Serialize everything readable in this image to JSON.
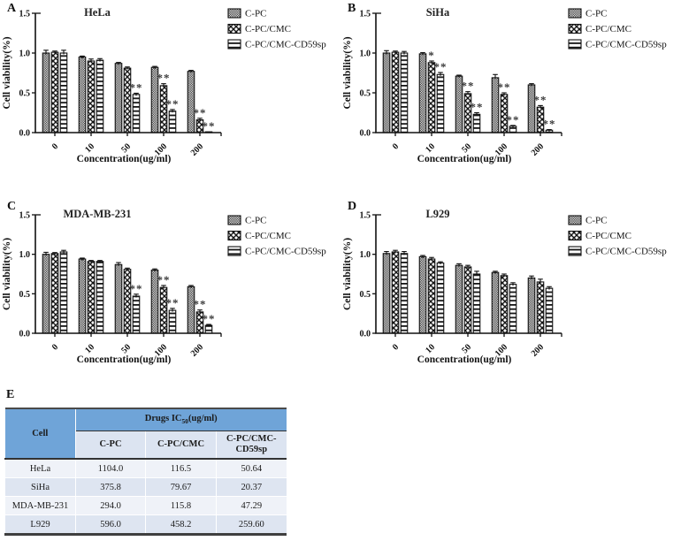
{
  "colors": {
    "ink": "#111111",
    "star": "#3a3a3a",
    "table_header_bg": "#6FA4D8",
    "table_subheader_bg": "#DCE4F1",
    "table_row_light": "#EFF2F8",
    "table_row_dark": "#DEE5F1",
    "table_border_dark": "#3f3f3f"
  },
  "legend": {
    "position": "right",
    "items": [
      {
        "label": "C-PC",
        "pattern": "checker"
      },
      {
        "label": "C-PC/CMC",
        "pattern": "diamond"
      },
      {
        "label": "C-PC/CMC-CD59sp",
        "pattern": "hlines"
      }
    ]
  },
  "chart_data": [
    {
      "type": "bar",
      "panel_letter": "A",
      "title": "HeLa",
      "xlabel": "Concentration(ug/ml)",
      "ylabel": "Cell viability(%)",
      "categories": [
        "0",
        "10",
        "50",
        "100",
        "200"
      ],
      "ylim": [
        0,
        1.5
      ],
      "yticks": [
        0.0,
        0.5,
        1.0,
        1.5
      ],
      "grid": false,
      "legend_position": "right",
      "series": [
        {
          "name": "C-PC",
          "values": [
            1.0,
            0.95,
            0.87,
            0.82,
            0.77
          ],
          "errors": [
            0.035,
            0.012,
            0.012,
            0.012,
            0.012
          ],
          "sig": [
            "",
            "",
            "",
            "",
            ""
          ]
        },
        {
          "name": "C-PC/CMC",
          "values": [
            1.01,
            0.9,
            0.81,
            0.59,
            0.16
          ],
          "errors": [
            0.015,
            0.025,
            0.015,
            0.025,
            0.02
          ],
          "sig": [
            "",
            "",
            "",
            "**",
            "**"
          ]
        },
        {
          "name": "C-PC/CMC-CD59sp",
          "values": [
            1.0,
            0.91,
            0.48,
            0.27,
            0.01
          ],
          "errors": [
            0.035,
            0.02,
            0.015,
            0.02,
            0.004
          ],
          "sig": [
            "",
            "",
            "**",
            "**",
            "**"
          ]
        }
      ]
    },
    {
      "type": "bar",
      "panel_letter": "B",
      "title": "SiHa",
      "xlabel": "Concentration(ug/ml)",
      "ylabel": "Cell viability(%)",
      "categories": [
        "0",
        "10",
        "50",
        "100",
        "200"
      ],
      "ylim": [
        0,
        1.5
      ],
      "yticks": [
        0.0,
        0.5,
        1.0,
        1.5
      ],
      "grid": false,
      "legend_position": "right",
      "series": [
        {
          "name": "C-PC",
          "values": [
            1.0,
            0.99,
            0.71,
            0.69,
            0.6
          ],
          "errors": [
            0.03,
            0.015,
            0.012,
            0.04,
            0.015
          ],
          "sig": [
            "",
            "",
            "",
            "",
            ""
          ]
        },
        {
          "name": "C-PC/CMC",
          "values": [
            1.01,
            0.88,
            0.49,
            0.48,
            0.32
          ],
          "errors": [
            0.015,
            0.02,
            0.025,
            0.02,
            0.02
          ],
          "sig": [
            "",
            "*",
            "**",
            "**",
            "**"
          ]
        },
        {
          "name": "C-PC/CMC-CD59sp",
          "values": [
            1.0,
            0.73,
            0.23,
            0.08,
            0.03
          ],
          "errors": [
            0.02,
            0.025,
            0.02,
            0.01,
            0.008
          ],
          "sig": [
            "",
            "**",
            "**",
            "**",
            "**"
          ]
        }
      ]
    },
    {
      "type": "bar",
      "panel_letter": "C",
      "title": "MDA-MB-231",
      "xlabel": "Concentration(ug/ml)",
      "ylabel": "Cell viability(%)",
      "categories": [
        "0",
        "10",
        "50",
        "100",
        "200"
      ],
      "ylim": [
        0,
        1.5
      ],
      "yticks": [
        0.0,
        0.5,
        1.0,
        1.5
      ],
      "grid": false,
      "legend_position": "right",
      "series": [
        {
          "name": "C-PC",
          "values": [
            1.0,
            0.94,
            0.87,
            0.8,
            0.59
          ],
          "errors": [
            0.025,
            0.012,
            0.025,
            0.015,
            0.015
          ],
          "sig": [
            "",
            "",
            "",
            "",
            ""
          ]
        },
        {
          "name": "C-PC/CMC",
          "values": [
            1.01,
            0.91,
            0.81,
            0.58,
            0.27
          ],
          "errors": [
            0.012,
            0.012,
            0.015,
            0.025,
            0.025
          ],
          "sig": [
            "",
            "",
            "",
            "**",
            "**"
          ]
        },
        {
          "name": "C-PC/CMC-CD59sp",
          "values": [
            1.03,
            0.91,
            0.47,
            0.29,
            0.1
          ],
          "errors": [
            0.02,
            0.012,
            0.025,
            0.025,
            0.012
          ],
          "sig": [
            "",
            "",
            "**",
            "**",
            "**"
          ]
        }
      ]
    },
    {
      "type": "bar",
      "panel_letter": "D",
      "title": "L929",
      "xlabel": "Concentration(ug/ml)",
      "ylabel": "Cell viability(%)",
      "categories": [
        "0",
        "10",
        "50",
        "100",
        "200"
      ],
      "ylim": [
        0,
        1.5
      ],
      "yticks": [
        0.0,
        0.5,
        1.0,
        1.5
      ],
      "grid": false,
      "legend_position": "right",
      "series": [
        {
          "name": "C-PC",
          "values": [
            1.01,
            0.97,
            0.86,
            0.77,
            0.7
          ],
          "errors": [
            0.025,
            0.015,
            0.02,
            0.015,
            0.025
          ],
          "sig": [
            "",
            "",
            "",
            "",
            ""
          ]
        },
        {
          "name": "C-PC/CMC",
          "values": [
            1.03,
            0.94,
            0.84,
            0.73,
            0.65
          ],
          "errors": [
            0.02,
            0.02,
            0.02,
            0.02,
            0.035
          ],
          "sig": [
            "",
            "",
            "",
            "",
            ""
          ]
        },
        {
          "name": "C-PC/CMC-CD59sp",
          "values": [
            1.01,
            0.89,
            0.75,
            0.62,
            0.57
          ],
          "errors": [
            0.025,
            0.015,
            0.035,
            0.02,
            0.02
          ],
          "sig": [
            "",
            "",
            "",
            "",
            ""
          ]
        }
      ]
    }
  ],
  "table": {
    "panel_letter": "E",
    "header": {
      "cell": "Cell",
      "drugs_pre": "Drugs  IC",
      "drugs_sub": "50",
      "drugs_post": "(ug/ml)",
      "columns": [
        "C-PC",
        "C-PC/CMC",
        "C-PC/CMC-CD59sp"
      ]
    },
    "rows": [
      {
        "cell": "HeLa",
        "values": [
          "1104.0",
          "116.5",
          "50.64"
        ]
      },
      {
        "cell": "SiHa",
        "values": [
          "375.8",
          "79.67",
          "20.37"
        ]
      },
      {
        "cell": "MDA-MB-231",
        "values": [
          "294.0",
          "115.8",
          "47.29"
        ]
      },
      {
        "cell": "L929",
        "values": [
          "596.0",
          "458.2",
          "259.60"
        ]
      }
    ]
  }
}
